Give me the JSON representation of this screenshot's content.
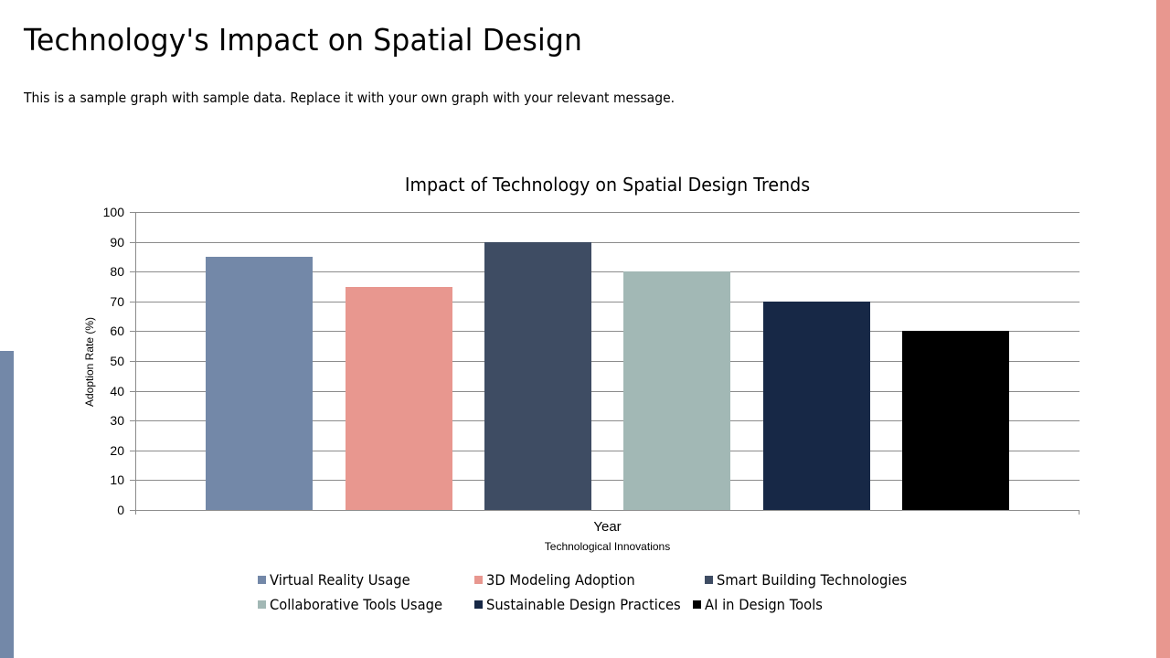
{
  "slide": {
    "title": "Technology's Impact on Spatial Design",
    "subtitle": "This is a sample graph with sample data. Replace it with your own graph with your relevant message.",
    "accent_right": "#e8978f",
    "accent_left": "#7388a8"
  },
  "chart_data": {
    "type": "bar",
    "title": "Impact of Technology on Spatial Design Trends",
    "categories": [
      "Year"
    ],
    "xlabel": "Technological Innovations",
    "ylabel": "Adoption Rate (%)",
    "ylim": [
      0,
      100
    ],
    "yticks": [
      "0",
      "10",
      "20",
      "30",
      "40",
      "50",
      "60",
      "70",
      "80",
      "90",
      "100"
    ],
    "grid": true,
    "legend_position": "bottom",
    "series": [
      {
        "name": "Virtual Reality Usage",
        "values": [
          85
        ],
        "color": "#7388a8"
      },
      {
        "name": "3D Modeling Adoption",
        "values": [
          75
        ],
        "color": "#e8978f"
      },
      {
        "name": "Smart Building Technologies",
        "values": [
          90
        ],
        "color": "#3e4c63"
      },
      {
        "name": "Collaborative Tools Usage",
        "values": [
          80
        ],
        "color": "#a2b8b5"
      },
      {
        "name": "Sustainable Design Practices",
        "values": [
          70
        ],
        "color": "#172846"
      },
      {
        "name": "AI in Design Tools",
        "values": [
          60
        ],
        "color": "#000000"
      }
    ]
  }
}
